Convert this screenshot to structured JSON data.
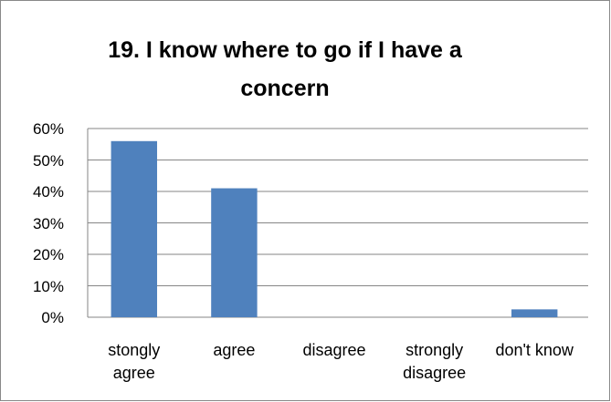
{
  "chart_data": {
    "type": "bar",
    "title": "19. I know where to go if I have a concern",
    "categories": [
      "stongly agree",
      "agree",
      "disagree",
      "strongly disagree",
      "don't know"
    ],
    "values": [
      56,
      41,
      0,
      0,
      2.5
    ],
    "color": "#4f81bd",
    "ylim": [
      0,
      60
    ],
    "yticks": [
      {
        "value": 0,
        "label": "0%"
      },
      {
        "value": 10,
        "label": "10%"
      },
      {
        "value": 20,
        "label": "20%"
      },
      {
        "value": 30,
        "label": "30%"
      },
      {
        "value": 40,
        "label": "40%"
      },
      {
        "value": 50,
        "label": "50%"
      },
      {
        "value": 60,
        "label": "60%"
      }
    ],
    "grid": true
  }
}
